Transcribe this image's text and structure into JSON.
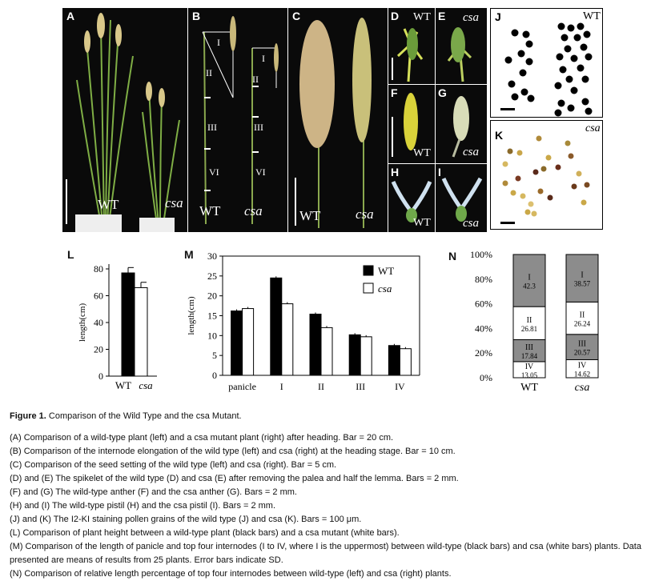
{
  "panels": {
    "A": {
      "label": "A",
      "wt": "WT",
      "mut": "csa"
    },
    "B": {
      "label": "B",
      "wt": "WT",
      "mut": "csa",
      "segments": [
        "I",
        "II",
        "III",
        "VI"
      ]
    },
    "C": {
      "label": "C",
      "wt": "WT",
      "mut": "csa"
    },
    "D": {
      "label": "D",
      "wt": "WT"
    },
    "E": {
      "label": "E",
      "mut": "csa"
    },
    "F": {
      "label": "F",
      "wt": "WT"
    },
    "G": {
      "label": "G",
      "mut": "csa"
    },
    "H": {
      "label": "H",
      "wt": "WT"
    },
    "I": {
      "label": "I",
      "mut": "csa"
    },
    "J": {
      "label": "J",
      "wt": "WT"
    },
    "K": {
      "label": "K",
      "mut": "csa"
    }
  },
  "colors": {
    "wt_bar": "#000000",
    "csa_bar": "#ffffff",
    "n_section_gray": "#8c8c8c"
  },
  "chart_data": [
    {
      "panel": "L",
      "type": "bar",
      "categories": [
        "WT",
        "csa"
      ],
      "values": [
        77,
        66
      ],
      "errors": [
        4,
        4
      ],
      "ylabel": "length(cm)",
      "ylim": [
        0,
        80
      ],
      "yticks": [
        0,
        20,
        40,
        60,
        80
      ]
    },
    {
      "panel": "M",
      "type": "bar",
      "categories": [
        "panicle",
        "I",
        "II",
        "III",
        "IV"
      ],
      "series": [
        {
          "name": "WT",
          "values": [
            16.2,
            24.5,
            15.4,
            10.2,
            7.5
          ]
        },
        {
          "name": "csa",
          "values": [
            16.8,
            18.0,
            12.0,
            9.7,
            6.7
          ]
        }
      ],
      "ylabel": "length(cm)",
      "ylim": [
        0,
        30
      ],
      "yticks": [
        0,
        5,
        10,
        15,
        20,
        25,
        30
      ],
      "legend": "top-right"
    },
    {
      "panel": "N",
      "type": "bar",
      "categories": [
        "WT",
        "csa"
      ],
      "segments": [
        "IV",
        "III",
        "II",
        "I"
      ],
      "values": [
        [
          13.05,
          17.84,
          26.81,
          42.3
        ],
        [
          14.62,
          20.57,
          26.24,
          38.57
        ]
      ],
      "value_labels": [
        [
          "13.05",
          "17.84",
          "26.81",
          "42.3"
        ],
        [
          "14.62",
          "20.57",
          "26.24",
          "38.57"
        ]
      ],
      "yticks": [
        "0%",
        "20%",
        "40%",
        "60%",
        "80%",
        "100%"
      ],
      "ylim": [
        0,
        100
      ]
    }
  ],
  "caption": {
    "figure_label": "Figure 1.",
    "figure_title": "Comparison of the Wild Type and the csa Mutant.",
    "items": [
      "(A) Comparison of a wild-type plant (left) and a csa mutant plant (right) after heading. Bar = 20 cm.",
      "(B) Comparison of the internode elongation of the wild type (left) and csa (right) at the heading stage. Bar = 10 cm.",
      "(C) Comparison of the seed setting of the wild type (left) and csa (right). Bar = 5 cm.",
      "(D) and (E) The spikelet of the wild type (D) and csa (E) after removing the palea and half the lemma. Bars = 2 mm.",
      "(F) and (G) The wild-type anther (F) and the csa anther (G). Bars = 2 mm.",
      "(H) and (I) The wild-type pistil (H) and the csa pistil (I). Bars = 2 mm.",
      "(J) and (K) The I2-KI staining pollen grains of the wild type (J) and csa (K). Bars = 100 μm.",
      "(L) Comparison of plant height between a wild-type plant (black bars) and a csa mutant (white bars).",
      "(M) Comparison of the length of panicle and top four internodes (I to IV, where I is the uppermost) between wild-type (black bars) and csa (white bars) plants. Data presented are means of results from 25 plants. Error bars indicate SD.",
      "(N) Comparison of relative length percentage of top four internodes between wild-type (left) and csa (right) plants."
    ]
  }
}
